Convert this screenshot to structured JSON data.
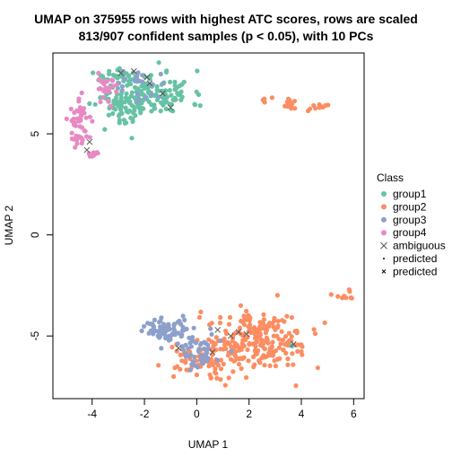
{
  "chart_data": {
    "type": "scatter",
    "title": "UMAP on 375955 rows with highest ATC scores, rows are scaled",
    "subtitle": "813/907 confident samples (p < 0.05), with 10 PCs",
    "xlabel": "UMAP 1",
    "ylabel": "UMAP 2",
    "xlim": [
      -5.5,
      6.4
    ],
    "ylim": [
      -8.1,
      9.0
    ],
    "x_ticks": [
      -4,
      -2,
      0,
      2,
      4,
      6
    ],
    "y_ticks": [
      -5,
      0,
      5
    ],
    "x_tick_labels": [
      "-4",
      "-2",
      "0",
      "2",
      "4",
      "6"
    ],
    "y_tick_labels": [
      "-5",
      "0",
      "5"
    ],
    "grid": false,
    "legend": {
      "title": "Class",
      "placement": "right",
      "entries": [
        {
          "label": "group1",
          "color": "#66C2A5",
          "marker": "circle"
        },
        {
          "label": "group2",
          "color": "#FC8D62",
          "marker": "circle"
        },
        {
          "label": "group3",
          "color": "#8DA0CB",
          "marker": "circle"
        },
        {
          "label": "group4",
          "color": "#E78AC3",
          "marker": "circle"
        },
        {
          "label": "ambiguous",
          "color": "#555555",
          "marker": "x"
        },
        {
          "label": "predicted",
          "color": "#000000",
          "marker": "dash"
        },
        {
          "label": "predicted",
          "color": "#000000",
          "marker": "small-x"
        }
      ]
    },
    "series": [
      {
        "name": "group1",
        "color": "#66C2A5",
        "clusters": [
          {
            "cx": -1.6,
            "cy": 7.0,
            "sx": 1.0,
            "sy": 0.8,
            "n": 130,
            "seed": 11
          },
          {
            "cx": -2.8,
            "cy": 6.3,
            "sx": 0.7,
            "sy": 0.7,
            "n": 60,
            "seed": 12
          },
          {
            "cx": -3.0,
            "cy": 7.8,
            "sx": 0.6,
            "sy": 0.3,
            "n": 30,
            "seed": 13
          },
          {
            "cx": 3.6,
            "cy": -5.4,
            "sx": 0.1,
            "sy": 0.1,
            "n": 3,
            "seed": 14
          }
        ]
      },
      {
        "name": "group2",
        "color": "#FC8D62",
        "clusters": [
          {
            "cx": 2.3,
            "cy": -5.3,
            "sx": 1.5,
            "sy": 1.0,
            "n": 240,
            "seed": 21
          },
          {
            "cx": 0.2,
            "cy": -6.3,
            "sx": 0.8,
            "sy": 0.6,
            "n": 60,
            "seed": 22
          },
          {
            "cx": 3.6,
            "cy": 6.5,
            "sx": 0.15,
            "sy": 0.2,
            "n": 12,
            "seed": 23
          },
          {
            "cx": 4.6,
            "cy": 6.3,
            "sx": 0.3,
            "sy": 0.15,
            "n": 10,
            "seed": 24
          },
          {
            "cx": 2.7,
            "cy": 6.7,
            "sx": 0.15,
            "sy": 0.1,
            "n": 4,
            "seed": 25
          },
          {
            "cx": 5.7,
            "cy": -2.9,
            "sx": 0.4,
            "sy": 0.3,
            "n": 10,
            "seed": 26
          }
        ]
      },
      {
        "name": "group3",
        "color": "#8DA0CB",
        "clusters": [
          {
            "cx": -1.2,
            "cy": -4.7,
            "sx": 0.6,
            "sy": 0.4,
            "n": 70,
            "seed": 31
          },
          {
            "cx": 0.0,
            "cy": -5.6,
            "sx": 0.7,
            "sy": 0.7,
            "n": 50,
            "seed": 32
          },
          {
            "cx": -2.2,
            "cy": 7.3,
            "sx": 0.6,
            "sy": 0.6,
            "n": 22,
            "seed": 33
          }
        ]
      },
      {
        "name": "group4",
        "color": "#E78AC3",
        "clusters": [
          {
            "cx": -4.4,
            "cy": 5.5,
            "sx": 0.35,
            "sy": 0.9,
            "n": 55,
            "seed": 41
          },
          {
            "cx": -3.6,
            "cy": 7.3,
            "sx": 0.4,
            "sy": 0.5,
            "n": 25,
            "seed": 42
          },
          {
            "cx": -4.0,
            "cy": 4.0,
            "sx": 0.2,
            "sy": 0.2,
            "n": 6,
            "seed": 43
          }
        ]
      },
      {
        "name": "ambiguous",
        "color": "#555555",
        "marker": "x",
        "points": [
          [
            -4.1,
            4.6
          ],
          [
            -4.2,
            4.2
          ],
          [
            -1.8,
            7.5
          ],
          [
            -2.9,
            8.0
          ],
          [
            -1.0,
            6.3
          ],
          [
            -1.9,
            7.8
          ],
          [
            -1.3,
            7.0
          ],
          [
            -2.4,
            8.1
          ],
          [
            1.3,
            -5.0
          ],
          [
            0.8,
            -4.7
          ],
          [
            1.6,
            -4.8
          ],
          [
            -0.7,
            -5.6
          ],
          [
            3.7,
            -5.4
          ],
          [
            1.9,
            -4.9
          ],
          [
            0.6,
            -5.8
          ]
        ]
      }
    ]
  }
}
